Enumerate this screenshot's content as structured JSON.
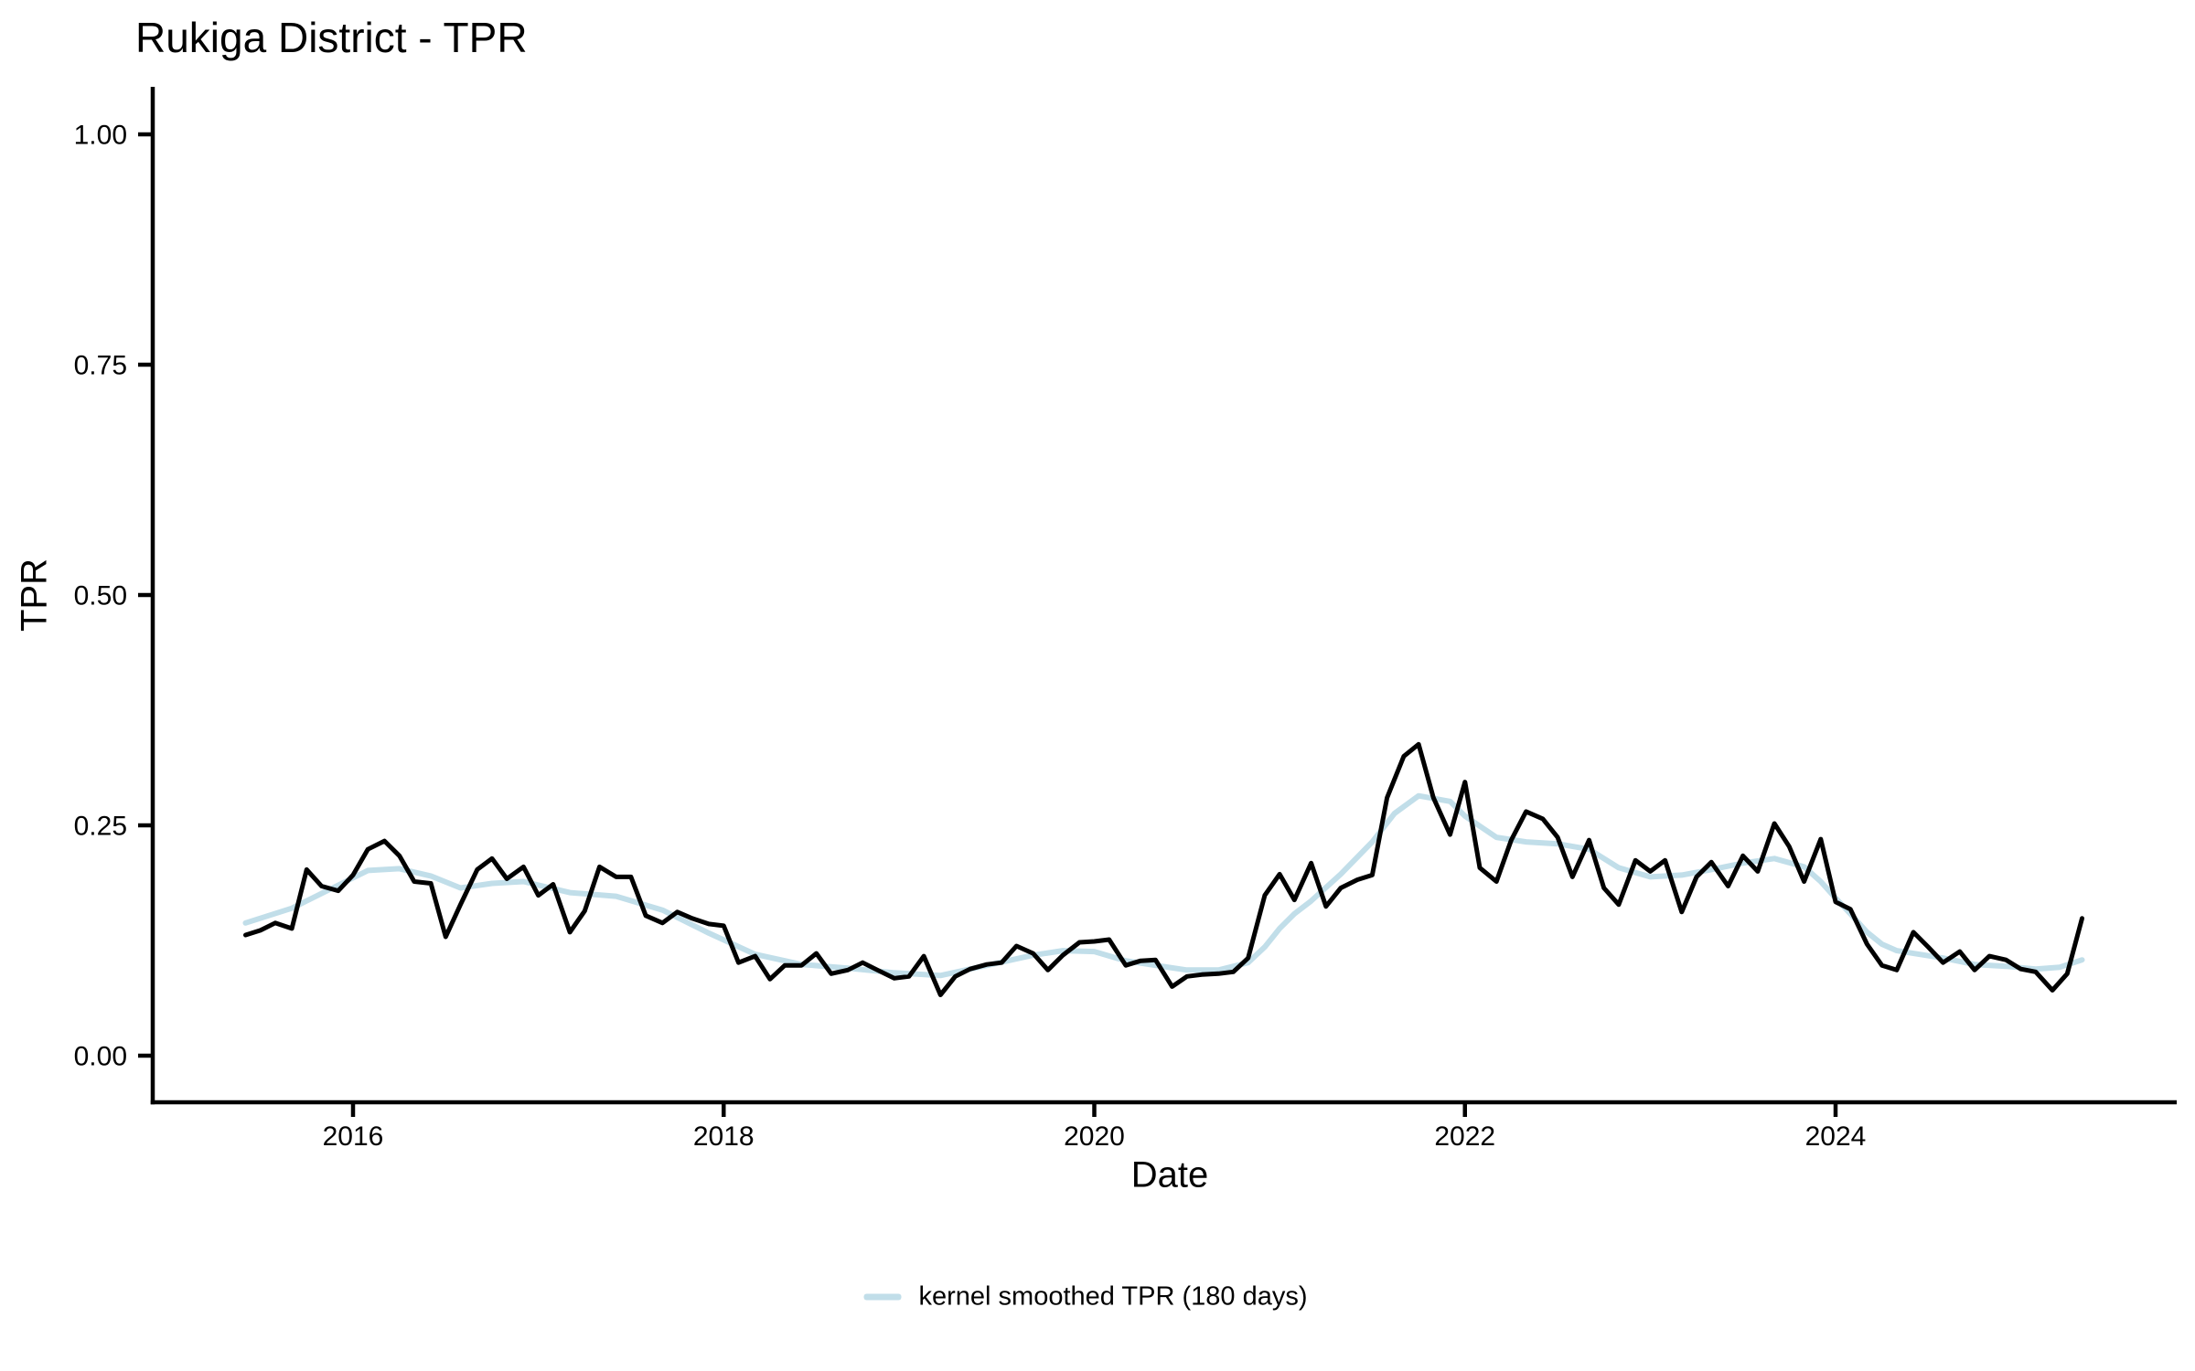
{
  "title": "Rukiga District - TPR",
  "axes": {
    "x_label": "Date",
    "y_label": "TPR"
  },
  "legend": {
    "label": "kernel smoothed TPR (180 days)",
    "swatch_color": "#c1dee9"
  },
  "colors": {
    "raw_line": "#000000",
    "smoothed_line": "#c1dee9",
    "axis": "#000000",
    "background": "#ffffff"
  },
  "chart_data": {
    "type": "line",
    "title": "Rukiga District - TPR",
    "xlabel": "Date",
    "ylabel": "TPR",
    "xlim": [
      2014.93,
      2025.84
    ],
    "ylim": [
      -0.05,
      1.05
    ],
    "grid": false,
    "legend_position": "bottom",
    "x_ticks": [
      {
        "value": 2016,
        "label": "2016"
      },
      {
        "value": 2018,
        "label": "2018"
      },
      {
        "value": 2020,
        "label": "2020"
      },
      {
        "value": 2022,
        "label": "2022"
      },
      {
        "value": 2024,
        "label": "2024"
      }
    ],
    "y_ticks": [
      {
        "value": 0.0,
        "label": "0.00"
      },
      {
        "value": 0.25,
        "label": "0.25"
      },
      {
        "value": 0.5,
        "label": "0.50"
      },
      {
        "value": 0.75,
        "label": "0.75"
      },
      {
        "value": 1.0,
        "label": "1.00"
      }
    ],
    "series": [
      {
        "name": "TPR",
        "color": "#000000",
        "width": 5,
        "points": [
          [
            2015.42,
            0.131
          ],
          [
            2015.5,
            0.136
          ],
          [
            2015.58,
            0.144
          ],
          [
            2015.67,
            0.138
          ],
          [
            2015.75,
            0.202
          ],
          [
            2015.83,
            0.184
          ],
          [
            2015.92,
            0.179
          ],
          [
            2016.0,
            0.196
          ],
          [
            2016.08,
            0.224
          ],
          [
            2016.17,
            0.233
          ],
          [
            2016.25,
            0.217
          ],
          [
            2016.33,
            0.189
          ],
          [
            2016.42,
            0.187
          ],
          [
            2016.5,
            0.129
          ],
          [
            2016.58,
            0.164
          ],
          [
            2016.67,
            0.202
          ],
          [
            2016.75,
            0.214
          ],
          [
            2016.83,
            0.192
          ],
          [
            2016.92,
            0.205
          ],
          [
            2017.0,
            0.174
          ],
          [
            2017.08,
            0.186
          ],
          [
            2017.17,
            0.134
          ],
          [
            2017.25,
            0.157
          ],
          [
            2017.33,
            0.205
          ],
          [
            2017.42,
            0.194
          ],
          [
            2017.5,
            0.194
          ],
          [
            2017.58,
            0.152
          ],
          [
            2017.67,
            0.144
          ],
          [
            2017.75,
            0.156
          ],
          [
            2017.83,
            0.149
          ],
          [
            2017.92,
            0.143
          ],
          [
            2018.0,
            0.141
          ],
          [
            2018.08,
            0.101
          ],
          [
            2018.17,
            0.108
          ],
          [
            2018.25,
            0.083
          ],
          [
            2018.33,
            0.098
          ],
          [
            2018.42,
            0.098
          ],
          [
            2018.5,
            0.111
          ],
          [
            2018.58,
            0.089
          ],
          [
            2018.67,
            0.093
          ],
          [
            2018.75,
            0.101
          ],
          [
            2018.83,
            0.093
          ],
          [
            2018.92,
            0.084
          ],
          [
            2019.0,
            0.086
          ],
          [
            2019.08,
            0.108
          ],
          [
            2019.17,
            0.066
          ],
          [
            2019.25,
            0.086
          ],
          [
            2019.33,
            0.094
          ],
          [
            2019.42,
            0.099
          ],
          [
            2019.5,
            0.101
          ],
          [
            2019.58,
            0.119
          ],
          [
            2019.67,
            0.111
          ],
          [
            2019.75,
            0.093
          ],
          [
            2019.83,
            0.109
          ],
          [
            2019.92,
            0.123
          ],
          [
            2020.0,
            0.124
          ],
          [
            2020.08,
            0.126
          ],
          [
            2020.17,
            0.098
          ],
          [
            2020.25,
            0.103
          ],
          [
            2020.33,
            0.104
          ],
          [
            2020.42,
            0.075
          ],
          [
            2020.5,
            0.086
          ],
          [
            2020.58,
            0.088
          ],
          [
            2020.67,
            0.089
          ],
          [
            2020.75,
            0.091
          ],
          [
            2020.83,
            0.106
          ],
          [
            2020.92,
            0.174
          ],
          [
            2021.0,
            0.197
          ],
          [
            2021.08,
            0.169
          ],
          [
            2021.17,
            0.209
          ],
          [
            2021.25,
            0.162
          ],
          [
            2021.33,
            0.182
          ],
          [
            2021.42,
            0.191
          ],
          [
            2021.5,
            0.196
          ],
          [
            2021.58,
            0.28
          ],
          [
            2021.67,
            0.325
          ],
          [
            2021.75,
            0.338
          ],
          [
            2021.83,
            0.28
          ],
          [
            2021.92,
            0.24
          ],
          [
            2022.0,
            0.297
          ],
          [
            2022.08,
            0.204
          ],
          [
            2022.17,
            0.189
          ],
          [
            2022.25,
            0.234
          ],
          [
            2022.33,
            0.265
          ],
          [
            2022.42,
            0.257
          ],
          [
            2022.5,
            0.237
          ],
          [
            2022.58,
            0.194
          ],
          [
            2022.67,
            0.234
          ],
          [
            2022.75,
            0.182
          ],
          [
            2022.83,
            0.164
          ],
          [
            2022.92,
            0.212
          ],
          [
            2023.0,
            0.2
          ],
          [
            2023.08,
            0.212
          ],
          [
            2023.17,
            0.156
          ],
          [
            2023.25,
            0.194
          ],
          [
            2023.33,
            0.21
          ],
          [
            2023.42,
            0.184
          ],
          [
            2023.5,
            0.217
          ],
          [
            2023.58,
            0.2
          ],
          [
            2023.67,
            0.252
          ],
          [
            2023.75,
            0.227
          ],
          [
            2023.83,
            0.189
          ],
          [
            2023.92,
            0.235
          ],
          [
            2024.0,
            0.167
          ],
          [
            2024.08,
            0.159
          ],
          [
            2024.17,
            0.121
          ],
          [
            2024.25,
            0.098
          ],
          [
            2024.33,
            0.093
          ],
          [
            2024.42,
            0.134
          ],
          [
            2024.5,
            0.118
          ],
          [
            2024.58,
            0.101
          ],
          [
            2024.67,
            0.113
          ],
          [
            2024.75,
            0.093
          ],
          [
            2024.83,
            0.108
          ],
          [
            2024.92,
            0.104
          ],
          [
            2025.0,
            0.094
          ],
          [
            2025.08,
            0.091
          ],
          [
            2025.17,
            0.071
          ],
          [
            2025.25,
            0.089
          ],
          [
            2025.33,
            0.149
          ]
        ]
      },
      {
        "name": "kernel smoothed TPR (180 days)",
        "color": "#c1dee9",
        "width": 6,
        "points": [
          [
            2015.42,
            0.144
          ],
          [
            2015.67,
            0.16
          ],
          [
            2015.92,
            0.185
          ],
          [
            2016.08,
            0.201
          ],
          [
            2016.25,
            0.203
          ],
          [
            2016.42,
            0.195
          ],
          [
            2016.58,
            0.182
          ],
          [
            2016.75,
            0.187
          ],
          [
            2016.92,
            0.189
          ],
          [
            2017.17,
            0.177
          ],
          [
            2017.42,
            0.173
          ],
          [
            2017.67,
            0.158
          ],
          [
            2017.92,
            0.133
          ],
          [
            2018.17,
            0.11
          ],
          [
            2018.42,
            0.099
          ],
          [
            2018.67,
            0.095
          ],
          [
            2018.92,
            0.09
          ],
          [
            2019.17,
            0.087
          ],
          [
            2019.42,
            0.098
          ],
          [
            2019.67,
            0.109
          ],
          [
            2019.83,
            0.114
          ],
          [
            2020.0,
            0.113
          ],
          [
            2020.17,
            0.103
          ],
          [
            2020.33,
            0.098
          ],
          [
            2020.5,
            0.093
          ],
          [
            2020.67,
            0.093
          ],
          [
            2020.83,
            0.101
          ],
          [
            2020.92,
            0.118
          ],
          [
            2021.0,
            0.138
          ],
          [
            2021.08,
            0.154
          ],
          [
            2021.17,
            0.168
          ],
          [
            2021.33,
            0.197
          ],
          [
            2021.5,
            0.232
          ],
          [
            2021.62,
            0.263
          ],
          [
            2021.75,
            0.282
          ],
          [
            2021.92,
            0.276
          ],
          [
            2022.0,
            0.26
          ],
          [
            2022.17,
            0.237
          ],
          [
            2022.33,
            0.232
          ],
          [
            2022.5,
            0.23
          ],
          [
            2022.67,
            0.224
          ],
          [
            2022.83,
            0.204
          ],
          [
            2023.0,
            0.194
          ],
          [
            2023.17,
            0.196
          ],
          [
            2023.33,
            0.202
          ],
          [
            2023.5,
            0.209
          ],
          [
            2023.67,
            0.214
          ],
          [
            2023.83,
            0.205
          ],
          [
            2023.92,
            0.189
          ],
          [
            2024.0,
            0.171
          ],
          [
            2024.08,
            0.154
          ],
          [
            2024.17,
            0.134
          ],
          [
            2024.25,
            0.121
          ],
          [
            2024.33,
            0.114
          ],
          [
            2024.42,
            0.111
          ],
          [
            2024.58,
            0.106
          ],
          [
            2024.75,
            0.099
          ],
          [
            2024.92,
            0.097
          ],
          [
            2025.08,
            0.094
          ],
          [
            2025.21,
            0.096
          ],
          [
            2025.33,
            0.104
          ]
        ]
      }
    ]
  }
}
